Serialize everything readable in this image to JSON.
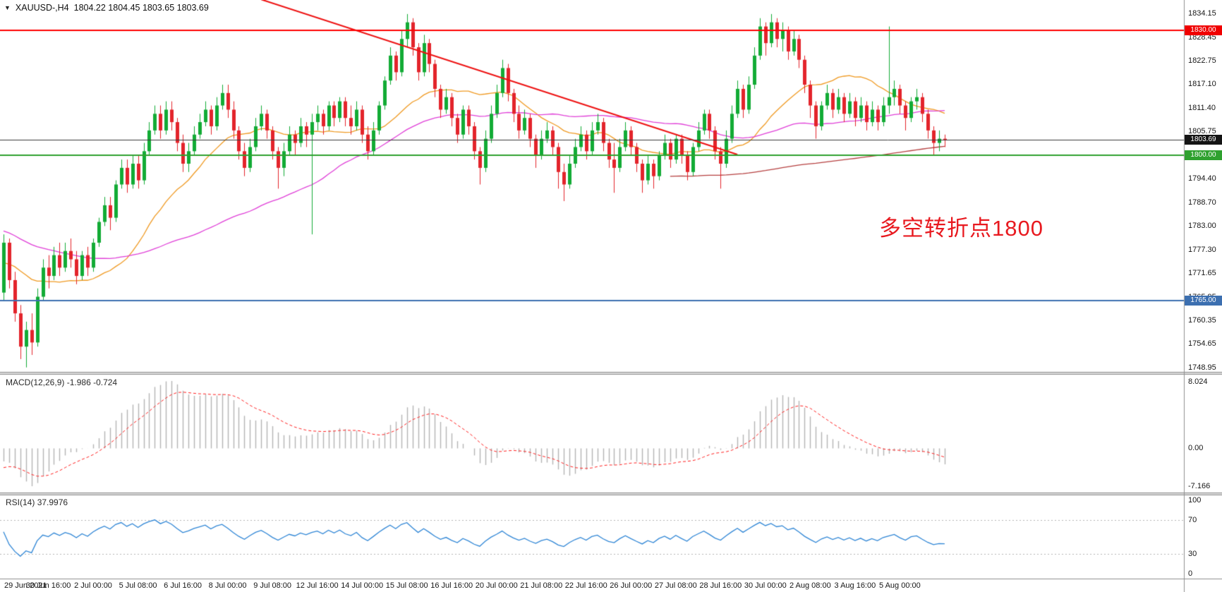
{
  "title": {
    "symbol": "XAUUSD-,H4",
    "ohlc": "1804.22 1804.45 1803.65 1803.69"
  },
  "annotation": {
    "text": "多空转折点1800",
    "color": "#e8191f"
  },
  "colors": {
    "candle_up": "#12ab35",
    "candle_down": "#e3242b",
    "macd_hist": "#b4b4b4",
    "macd_signal": "#ff2020",
    "rsi_line": "#2f86d6",
    "level_line": "#b5b5b5"
  },
  "price_lines": [
    {
      "price": 1830.0,
      "label": "1830.00",
      "color": "#ff0000",
      "width": 2,
      "badge": "#f00000"
    },
    {
      "price": 1803.69,
      "label": "1803.69",
      "color": "#3a3a3a",
      "width": 1,
      "badge": "#141414"
    },
    {
      "price": 1800.0,
      "label": "1800.00",
      "color": "#2fa12f",
      "width": 2,
      "badge": "#2fa12f"
    },
    {
      "price": 1765.0,
      "label": "1765.00",
      "color": "#3c6fb0",
      "width": 2,
      "badge": "#3c6fb0"
    }
  ],
  "indicators": {
    "macd": {
      "label": "MACD(12,26,9)",
      "values": "-1.986 -0.724",
      "fast": 12,
      "slow": 26,
      "signal": 9
    },
    "rsi": {
      "label": "RSI(14)",
      "value": "37.9976",
      "period": 14,
      "levels": [
        70,
        30
      ]
    }
  },
  "axes": {
    "price_labels": [
      "1834.15",
      "1828.45",
      "1822.75",
      "1817.10",
      "1811.40",
      "1805.75",
      "1800.05",
      "1794.40",
      "1788.70",
      "1783.00",
      "1777.30",
      "1771.65",
      "1765.95",
      "1760.35",
      "1754.65",
      "1748.95"
    ],
    "macd_labels": {
      "max": "8.024",
      "zero": "0.00",
      "min": "-7.166"
    },
    "rsi_labels": [
      "100",
      "70",
      "30",
      "0"
    ],
    "time_labels": [
      "29 Jun 2021",
      "30 Jun 16:00",
      "2 Jul 00:00",
      "5 Jul 08:00",
      "6 Jul 16:00",
      "8 Jul 00:00",
      "9 Jul 08:00",
      "12 Jul 16:00",
      "14 Jul 00:00",
      "15 Jul 08:00",
      "16 Jul 16:00",
      "20 Jul 00:00",
      "21 Jul 08:00",
      "22 Jul 16:00",
      "26 Jul 00:00",
      "27 Jul 08:00",
      "28 Jul 16:00",
      "30 Jul 00:00",
      "2 Aug 08:00",
      "3 Aug 16:00",
      "5 Aug 00:00"
    ]
  },
  "chart_data": {
    "type": "candlestick",
    "symbol": "XAUUSD-",
    "timeframe": "H4",
    "current_price": 1803.69,
    "y_range": [
      1747.9,
      1837.4
    ],
    "trendline": {
      "bar_start": 46,
      "price_start": 1837.5,
      "bar_end": 131,
      "price_end": 1800.2,
      "color": "#ee1111"
    },
    "moving_averages": [
      {
        "name": "ma-fast",
        "window": 21,
        "color": "#f09a22"
      },
      {
        "name": "ma-medium",
        "window": 55,
        "color": "#e03fd8"
      },
      {
        "name": "ma-slow",
        "window": 180,
        "color": "#b64040",
        "full_window_only": true
      }
    ],
    "prehistory_closes": [
      1796,
      1798,
      1800,
      1799,
      1797,
      1795,
      1796,
      1798,
      1797,
      1795,
      1793,
      1794,
      1792,
      1790,
      1791,
      1793,
      1792,
      1790,
      1788,
      1789,
      1787,
      1785,
      1786,
      1788,
      1787,
      1785,
      1783,
      1784,
      1782,
      1780,
      1781,
      1783,
      1782,
      1780,
      1778,
      1779,
      1777,
      1778,
      1780,
      1779,
      1777,
      1775,
      1776,
      1778,
      1777,
      1775,
      1773,
      1774,
      1776,
      1775,
      1773,
      1771,
      1772,
      1774,
      1773,
      1771,
      1770,
      1772,
      1774,
      1773
    ],
    "candles": [
      [
        1767,
        1781,
        1765,
        1779
      ],
      [
        1779,
        1780,
        1768,
        1770
      ],
      [
        1770,
        1772,
        1760,
        1762
      ],
      [
        1762,
        1764,
        1751,
        1754
      ],
      [
        1754,
        1760,
        1749,
        1758
      ],
      [
        1758,
        1762,
        1752,
        1755
      ],
      [
        1755,
        1768,
        1754,
        1766
      ],
      [
        1766,
        1775,
        1765,
        1773
      ],
      [
        1773,
        1776,
        1768,
        1771
      ],
      [
        1771,
        1778,
        1770,
        1776
      ],
      [
        1776,
        1779,
        1771,
        1773
      ],
      [
        1773,
        1779,
        1772,
        1777
      ],
      [
        1777,
        1780,
        1773,
        1775
      ],
      [
        1775,
        1777,
        1769,
        1771
      ],
      [
        1771,
        1777,
        1770,
        1776
      ],
      [
        1776,
        1778,
        1771,
        1773
      ],
      [
        1773,
        1780,
        1772,
        1779
      ],
      [
        1779,
        1785,
        1778,
        1784
      ],
      [
        1784,
        1790,
        1783,
        1788
      ],
      [
        1788,
        1790,
        1782,
        1785
      ],
      [
        1785,
        1794,
        1784,
        1793
      ],
      [
        1793,
        1799,
        1792,
        1797
      ],
      [
        1797,
        1799,
        1791,
        1793
      ],
      [
        1793,
        1800,
        1792,
        1798
      ],
      [
        1798,
        1800,
        1792,
        1794
      ],
      [
        1794,
        1803,
        1793,
        1801
      ],
      [
        1801,
        1808,
        1800,
        1806
      ],
      [
        1806,
        1812,
        1805,
        1810
      ],
      [
        1810,
        1812,
        1804,
        1806
      ],
      [
        1806,
        1813,
        1805,
        1811
      ],
      [
        1811,
        1813,
        1806,
        1808
      ],
      [
        1808,
        1809,
        1801,
        1803
      ],
      [
        1803,
        1805,
        1796,
        1798
      ],
      [
        1798,
        1803,
        1796,
        1801
      ],
      [
        1801,
        1807,
        1800,
        1805
      ],
      [
        1805,
        1810,
        1804,
        1808
      ],
      [
        1808,
        1813,
        1807,
        1811
      ],
      [
        1811,
        1812,
        1805,
        1807
      ],
      [
        1807,
        1814,
        1806,
        1812
      ],
      [
        1812,
        1817,
        1811,
        1815
      ],
      [
        1815,
        1817,
        1809,
        1811
      ],
      [
        1811,
        1813,
        1804,
        1806
      ],
      [
        1806,
        1807,
        1799,
        1801
      ],
      [
        1801,
        1803,
        1795,
        1797
      ],
      [
        1797,
        1804,
        1796,
        1802
      ],
      [
        1802,
        1809,
        1801,
        1807
      ],
      [
        1807,
        1812,
        1806,
        1810
      ],
      [
        1810,
        1811,
        1804,
        1806
      ],
      [
        1806,
        1807,
        1799,
        1801
      ],
      [
        1801,
        1802,
        1792,
        1797
      ],
      [
        1797,
        1803,
        1795,
        1801
      ],
      [
        1801,
        1807,
        1800,
        1805
      ],
      [
        1805,
        1806,
        1800,
        1803
      ],
      [
        1803,
        1809,
        1802,
        1807
      ],
      [
        1807,
        1808,
        1802,
        1805
      ],
      [
        1805,
        1810,
        1781,
        1808
      ],
      [
        1808,
        1812,
        1806,
        1810
      ],
      [
        1810,
        1811,
        1805,
        1807
      ],
      [
        1807,
        1813,
        1806,
        1812
      ],
      [
        1812,
        1813,
        1807,
        1809
      ],
      [
        1809,
        1814,
        1808,
        1813
      ],
      [
        1813,
        1814,
        1807,
        1809
      ],
      [
        1809,
        1812,
        1805,
        1807
      ],
      [
        1807,
        1813,
        1806,
        1811
      ],
      [
        1811,
        1812,
        1803,
        1805
      ],
      [
        1805,
        1807,
        1799,
        1801
      ],
      [
        1801,
        1808,
        1800,
        1806
      ],
      [
        1806,
        1813,
        1805,
        1812
      ],
      [
        1812,
        1819,
        1811,
        1818
      ],
      [
        1818,
        1826,
        1817,
        1824
      ],
      [
        1824,
        1825,
        1818,
        1820
      ],
      [
        1820,
        1830,
        1819,
        1828
      ],
      [
        1828,
        1834,
        1826,
        1832
      ],
      [
        1832,
        1833,
        1824,
        1826
      ],
      [
        1826,
        1827,
        1818,
        1820
      ],
      [
        1820,
        1829,
        1819,
        1827
      ],
      [
        1827,
        1828,
        1820,
        1822
      ],
      [
        1822,
        1823,
        1814,
        1816
      ],
      [
        1816,
        1817,
        1809,
        1811
      ],
      [
        1811,
        1816,
        1810,
        1814
      ],
      [
        1814,
        1815,
        1807,
        1809
      ],
      [
        1809,
        1810,
        1803,
        1805
      ],
      [
        1805,
        1812,
        1804,
        1811
      ],
      [
        1811,
        1812,
        1805,
        1807
      ],
      [
        1807,
        1808,
        1799,
        1801
      ],
      [
        1801,
        1802,
        1793,
        1797
      ],
      [
        1797,
        1806,
        1796,
        1804
      ],
      [
        1804,
        1812,
        1803,
        1810
      ],
      [
        1810,
        1817,
        1809,
        1815
      ],
      [
        1815,
        1823,
        1814,
        1821
      ],
      [
        1821,
        1822,
        1813,
        1815
      ],
      [
        1815,
        1816,
        1808,
        1810
      ],
      [
        1810,
        1812,
        1804,
        1806
      ],
      [
        1806,
        1811,
        1805,
        1809
      ],
      [
        1809,
        1810,
        1802,
        1804
      ],
      [
        1804,
        1805,
        1797,
        1800
      ],
      [
        1800,
        1806,
        1799,
        1804
      ],
      [
        1804,
        1808,
        1803,
        1806
      ],
      [
        1806,
        1807,
        1800,
        1802
      ],
      [
        1802,
        1803,
        1792,
        1796
      ],
      [
        1796,
        1798,
        1789,
        1793
      ],
      [
        1793,
        1800,
        1792,
        1798
      ],
      [
        1798,
        1804,
        1797,
        1802
      ],
      [
        1802,
        1807,
        1801,
        1805
      ],
      [
        1805,
        1806,
        1799,
        1801
      ],
      [
        1801,
        1808,
        1800,
        1806
      ],
      [
        1806,
        1810,
        1805,
        1808
      ],
      [
        1808,
        1809,
        1801,
        1803
      ],
      [
        1803,
        1804,
        1797,
        1799
      ],
      [
        1799,
        1803,
        1791,
        1797
      ],
      [
        1797,
        1804,
        1796,
        1802
      ],
      [
        1802,
        1808,
        1801,
        1806
      ],
      [
        1806,
        1807,
        1800,
        1802
      ],
      [
        1802,
        1803,
        1796,
        1798
      ],
      [
        1798,
        1799,
        1791,
        1794
      ],
      [
        1794,
        1800,
        1793,
        1798
      ],
      [
        1798,
        1799,
        1792,
        1795
      ],
      [
        1795,
        1801,
        1794,
        1800
      ],
      [
        1800,
        1805,
        1799,
        1803
      ],
      [
        1803,
        1804,
        1797,
        1799
      ],
      [
        1799,
        1805,
        1798,
        1804
      ],
      [
        1804,
        1805,
        1798,
        1800
      ],
      [
        1800,
        1801,
        1794,
        1796
      ],
      [
        1796,
        1803,
        1795,
        1802
      ],
      [
        1802,
        1808,
        1801,
        1806
      ],
      [
        1806,
        1811,
        1805,
        1810
      ],
      [
        1810,
        1811,
        1804,
        1806
      ],
      [
        1806,
        1807,
        1799,
        1801
      ],
      [
        1801,
        1802,
        1792,
        1798
      ],
      [
        1798,
        1806,
        1797,
        1804
      ],
      [
        1804,
        1812,
        1803,
        1810
      ],
      [
        1810,
        1818,
        1809,
        1816
      ],
      [
        1816,
        1817,
        1809,
        1811
      ],
      [
        1811,
        1819,
        1810,
        1817
      ],
      [
        1817,
        1826,
        1816,
        1824
      ],
      [
        1824,
        1833,
        1823,
        1831
      ],
      [
        1831,
        1832,
        1824,
        1827
      ],
      [
        1827,
        1834,
        1826,
        1832
      ],
      [
        1832,
        1833,
        1826,
        1828
      ],
      [
        1828,
        1832,
        1825,
        1830
      ],
      [
        1830,
        1831,
        1823,
        1825
      ],
      [
        1825,
        1830,
        1824,
        1828
      ],
      [
        1828,
        1829,
        1821,
        1823
      ],
      [
        1823,
        1824,
        1815,
        1817
      ],
      [
        1817,
        1818,
        1809,
        1812
      ],
      [
        1812,
        1813,
        1804,
        1807
      ],
      [
        1807,
        1813,
        1806,
        1812
      ],
      [
        1812,
        1817,
        1811,
        1815
      ],
      [
        1815,
        1816,
        1809,
        1811
      ],
      [
        1811,
        1816,
        1810,
        1814
      ],
      [
        1814,
        1815,
        1808,
        1810
      ],
      [
        1810,
        1815,
        1809,
        1813
      ],
      [
        1813,
        1814,
        1807,
        1809
      ],
      [
        1809,
        1814,
        1808,
        1812
      ],
      [
        1812,
        1813,
        1806,
        1808
      ],
      [
        1808,
        1813,
        1807,
        1811
      ],
      [
        1811,
        1812,
        1806,
        1808
      ],
      [
        1808,
        1814,
        1807,
        1812
      ],
      [
        1812,
        1831,
        1810,
        1814
      ],
      [
        1814,
        1818,
        1812,
        1816
      ],
      [
        1816,
        1817,
        1810,
        1812
      ],
      [
        1812,
        1813,
        1806,
        1809
      ],
      [
        1809,
        1814,
        1808,
        1813
      ],
      [
        1813,
        1816,
        1811,
        1814
      ],
      [
        1814,
        1815,
        1808,
        1810
      ],
      [
        1810,
        1811,
        1804,
        1806
      ],
      [
        1806,
        1807,
        1800,
        1803
      ],
      [
        1803,
        1806,
        1801,
        1804
      ],
      [
        1804,
        1805,
        1802,
        1803.7
      ]
    ]
  }
}
